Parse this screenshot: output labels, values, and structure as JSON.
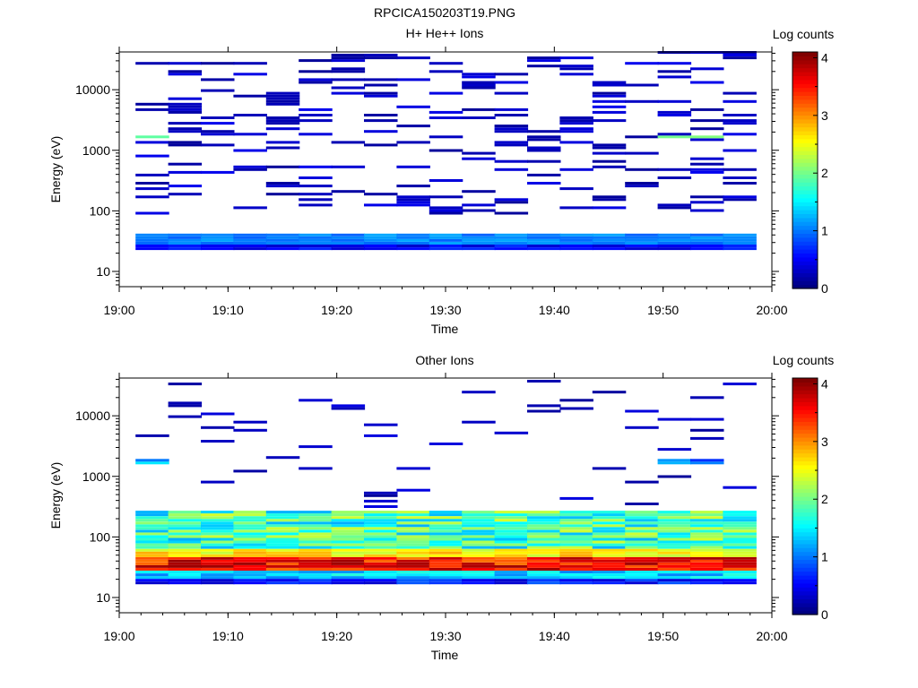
{
  "figure_title": "RPCICA150203T19.PNG",
  "chart_data": [
    {
      "type": "heatmap",
      "title": "H+ He++ Ions",
      "xlabel": "Time",
      "ylabel": "Energy (eV)",
      "x_ticks": [
        "19:00",
        "19:10",
        "19:20",
        "19:30",
        "19:40",
        "19:50",
        "20:00"
      ],
      "y_ticks": [
        "10",
        "100",
        "1000",
        "10000"
      ],
      "y_scale": "log",
      "xlim": [
        "19:00",
        "20:00"
      ],
      "ylim": [
        5.6,
        42000
      ],
      "colorbar": {
        "label": "Log counts",
        "ticks": [
          "0",
          "1",
          "2",
          "3",
          "4"
        ],
        "range": [
          0,
          4
        ],
        "colormap": "jet"
      },
      "time_bins": [
        "19:03",
        "19:06",
        "19:09",
        "19:12",
        "19:15",
        "19:18",
        "19:21",
        "19:24",
        "19:27",
        "19:30",
        "19:33",
        "19:36",
        "19:39",
        "19:42",
        "19:45",
        "19:48",
        "19:51",
        "19:54",
        "19:57"
      ],
      "summary": "Dense low energy band near 30-40 eV (log counts ~1-1.2), sparse single-count lines from 100 eV to 40000 eV, isolated ~2 log-count cells near 1600 eV at 19:03, 19:51, 19:54."
    },
    {
      "type": "heatmap",
      "title": "Other Ions",
      "xlabel": "Time",
      "ylabel": "Energy (eV)",
      "x_ticks": [
        "19:00",
        "19:10",
        "19:20",
        "19:30",
        "19:40",
        "19:50",
        "20:00"
      ],
      "y_ticks": [
        "10",
        "100",
        "1000",
        "10000"
      ],
      "y_scale": "log",
      "xlim": [
        "19:00",
        "20:00"
      ],
      "ylim": [
        5.6,
        42000
      ],
      "colorbar": {
        "label": "Log counts",
        "ticks": [
          "0",
          "1",
          "2",
          "3",
          "4"
        ],
        "range": [
          0,
          4
        ],
        "colormap": "jet"
      },
      "time_bins": [
        "19:03",
        "19:06",
        "19:09",
        "19:12",
        "19:15",
        "19:18",
        "19:21",
        "19:24",
        "19:27",
        "19:30",
        "19:33",
        "19:36",
        "19:39",
        "19:42",
        "19:45",
        "19:48",
        "19:51",
        "19:54",
        "19:57"
      ],
      "summary": "Strong band 25-45 eV peaking ~3.6-4 log counts near 33 eV, broad 1.5-2.5 log counts from 45-250 eV, sparse counts above 300 eV."
    }
  ],
  "colors": {
    "background": "#ffffff",
    "axis": "#000000"
  }
}
